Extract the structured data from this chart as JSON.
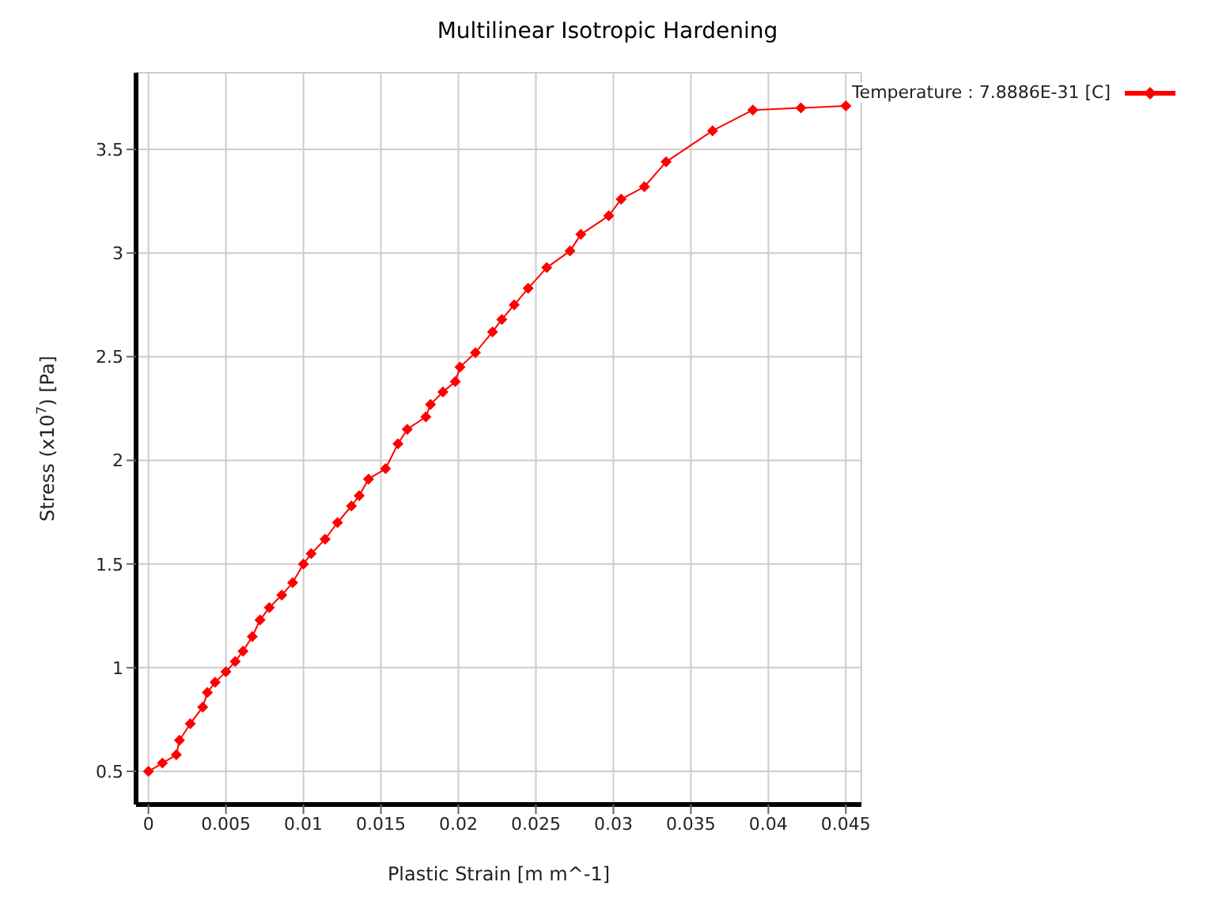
{
  "chart_data": {
    "type": "line",
    "title": "Multilinear Isotropic Hardening",
    "xlabel": "Plastic Strain  [m m^-1]",
    "ylabel": "Stress  (x10$^{7}$)  [Pa]",
    "x": [
      0,
      0.0009,
      0.0018,
      0.002,
      0.0027,
      0.0035,
      0.0038,
      0.0043,
      0.005,
      0.0056,
      0.0061,
      0.0067,
      0.0072,
      0.0078,
      0.0086,
      0.0093,
      0.01,
      0.0105,
      0.0114,
      0.0122,
      0.0131,
      0.0136,
      0.0142,
      0.0153,
      0.0161,
      0.0167,
      0.0179,
      0.0182,
      0.019,
      0.0198,
      0.0201,
      0.0211,
      0.0222,
      0.0228,
      0.0236,
      0.0245,
      0.0257,
      0.0272,
      0.0279,
      0.0297,
      0.0305,
      0.032,
      0.0334,
      0.0364,
      0.039,
      0.0421,
      0.045
    ],
    "series": [
      {
        "name": "Temperature : 7.8886E-31 [C]",
        "color": "#ff0000",
        "values": [
          0.5,
          0.54,
          0.58,
          0.65,
          0.73,
          0.81,
          0.88,
          0.93,
          0.98,
          1.03,
          1.08,
          1.15,
          1.23,
          1.29,
          1.35,
          1.41,
          1.5,
          1.55,
          1.62,
          1.7,
          1.78,
          1.83,
          1.91,
          1.96,
          2.08,
          2.15,
          2.21,
          2.27,
          2.33,
          2.38,
          2.45,
          2.52,
          2.62,
          2.68,
          2.75,
          2.83,
          2.93,
          3.01,
          3.09,
          3.18,
          3.26,
          3.32,
          3.44,
          3.59,
          3.69,
          3.7,
          3.71
        ]
      }
    ],
    "xlim": [
      -0.0008,
      0.046
    ],
    "xticks": [
      0,
      0.005,
      0.01,
      0.015,
      0.02,
      0.025,
      0.03,
      0.035,
      0.04,
      0.045
    ],
    "ylim": [
      0.34,
      3.87
    ],
    "yticks": [
      0.5,
      1,
      1.5,
      2,
      2.5,
      3,
      3.5
    ],
    "grid": true,
    "legend": "top right",
    "marker": "diamond",
    "line_style": "solid"
  }
}
